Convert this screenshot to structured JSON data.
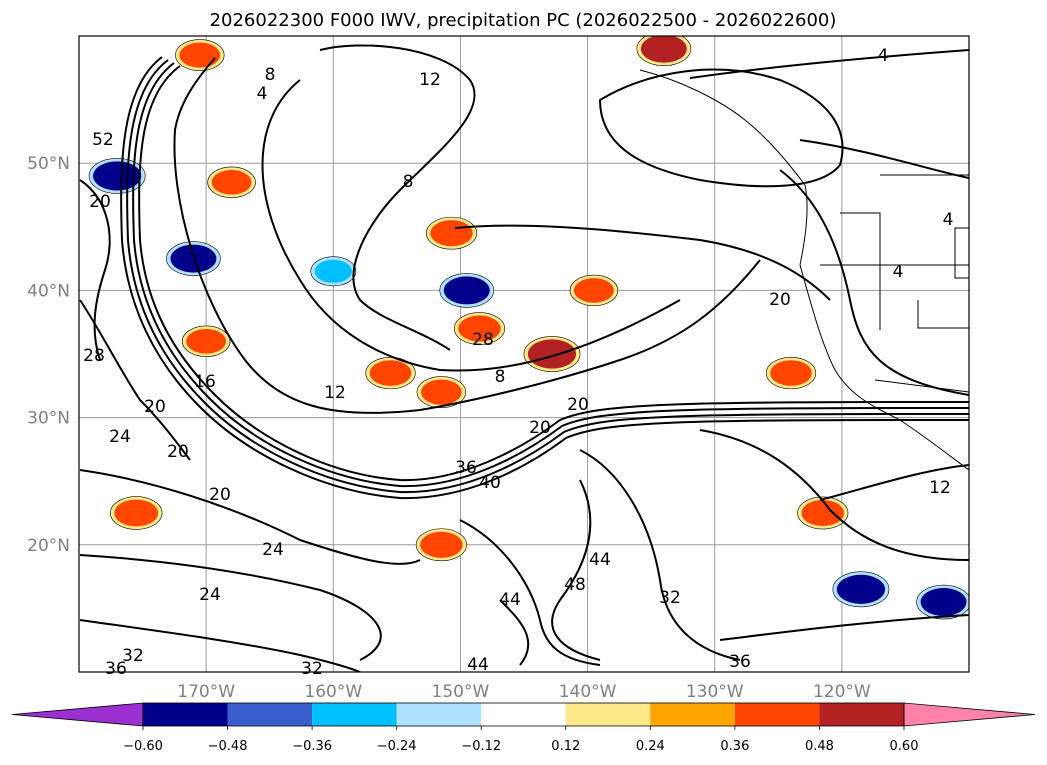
{
  "chart_data": {
    "type": "contour-map",
    "title": "2026022300 F000 IWV, precipitation PC (2026022500 - 2026022600)",
    "xlabel": "",
    "ylabel": "",
    "x_ticks": [
      "170°W",
      "160°W",
      "150°W",
      "140°W",
      "130°W",
      "120°W"
    ],
    "x_tick_values": [
      -170,
      -160,
      -150,
      -140,
      -130,
      -120
    ],
    "y_ticks": [
      "50°N",
      "40°N",
      "30°N",
      "20°N"
    ],
    "y_tick_values": [
      50,
      40,
      30,
      20
    ],
    "lon_range": [
      -180,
      -110
    ],
    "lat_range": [
      10,
      60
    ],
    "grid": true,
    "iwv_contour_labels": [
      "4",
      "8",
      "12",
      "16",
      "20",
      "24",
      "28",
      "32",
      "36",
      "40",
      "44",
      "48",
      "52"
    ],
    "colorbar": {
      "orientation": "horizontal",
      "extend": "both",
      "ticks": [
        "−0.60",
        "−0.48",
        "−0.36",
        "−0.24",
        "−0.12",
        "0.12",
        "0.24",
        "0.36",
        "0.48",
        "0.60"
      ],
      "tick_values": [
        -0.6,
        -0.48,
        -0.36,
        -0.24,
        -0.12,
        0.12,
        0.24,
        0.36,
        0.48,
        0.6
      ],
      "colors": [
        "#9b30d0",
        "#00008b",
        "#3a5fcd",
        "#00bfff",
        "#b0e2ff",
        "#ffffff",
        "#ffe88a",
        "#ffa500",
        "#ff4500",
        "#b22222",
        "#ff82ab"
      ]
    },
    "precip_patches": [
      {
        "lon": -150.7,
        "lat": 44.5,
        "value": 0.42
      },
      {
        "lon": -142.8,
        "lat": 35.0,
        "value": 0.55
      },
      {
        "lon": -151.5,
        "lat": 32.0,
        "value": 0.38
      },
      {
        "lon": -155.5,
        "lat": 33.5,
        "value": 0.4
      },
      {
        "lon": -148.5,
        "lat": 37.0,
        "value": 0.42
      },
      {
        "lon": -177.0,
        "lat": 49.0,
        "value": -0.55
      },
      {
        "lon": -171.0,
        "lat": 42.5,
        "value": -0.5
      },
      {
        "lon": -149.5,
        "lat": 40.0,
        "value": -0.5
      },
      {
        "lon": -170.0,
        "lat": 36.0,
        "value": 0.36
      },
      {
        "lon": -175.5,
        "lat": 22.5,
        "value": 0.45
      },
      {
        "lon": -151.5,
        "lat": 20.0,
        "value": 0.42
      },
      {
        "lon": -112.0,
        "lat": 15.5,
        "value": -0.5
      },
      {
        "lon": -118.5,
        "lat": 16.5,
        "value": -0.55
      },
      {
        "lon": -121.5,
        "lat": 22.5,
        "value": 0.42
      },
      {
        "lon": -124.0,
        "lat": 33.5,
        "value": 0.4
      },
      {
        "lon": -170.5,
        "lat": 58.5,
        "value": 0.38
      },
      {
        "lon": -134.0,
        "lat": 59.0,
        "value": 0.5
      },
      {
        "lon": -168.0,
        "lat": 48.5,
        "value": 0.36
      },
      {
        "lon": -139.5,
        "lat": 40.0,
        "value": 0.36
      },
      {
        "lon": -160.0,
        "lat": 41.5,
        "value": -0.3
      }
    ]
  }
}
